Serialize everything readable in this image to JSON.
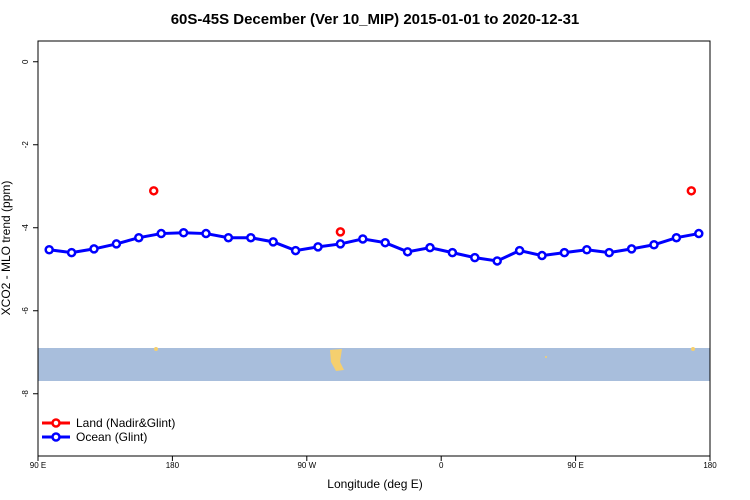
{
  "chart_data": {
    "type": "line",
    "title": "60S-45S December (Ver 10_MIP)   2015-01-01 to 2020-12-31",
    "x_label": "Longitude (deg E)",
    "y_label": "XCO2 - MLO trend (ppm)",
    "xlim": [
      90,
      540
    ],
    "ylim": [
      -9.5,
      0.5
    ],
    "xticks": [
      {
        "value": 90,
        "label": "90 E"
      },
      {
        "value": 180,
        "label": "180"
      },
      {
        "value": 270,
        "label": "90 W"
      },
      {
        "value": 360,
        "label": "0"
      },
      {
        "value": 450,
        "label": "90 E"
      },
      {
        "value": 540,
        "label": "180"
      }
    ],
    "yticks": [
      0,
      -2,
      -4,
      -6,
      -8
    ],
    "legend": "bottom-left",
    "series": [
      {
        "name": "Land (Nadir&Glint)",
        "color": "#ff0000",
        "x": [
          167.5,
          292.5,
          527.5
        ],
        "values": [
          -3.11,
          -4.1,
          -3.11
        ]
      },
      {
        "name": "Ocean (Glint)",
        "color": "#0000ff",
        "x": [
          97.5,
          112.5,
          127.5,
          142.5,
          157.5,
          172.5,
          187.5,
          202.5,
          217.5,
          232.5,
          247.5,
          262.5,
          277.5,
          292.5,
          307.5,
          322.5,
          337.5,
          352.5,
          367.5,
          382.5,
          397.5,
          412.5,
          427.5,
          442.5,
          457.5,
          472.5,
          487.5,
          502.5,
          517.5,
          532.5
        ],
        "values": [
          -4.53,
          -4.6,
          -4.51,
          -4.39,
          -4.24,
          -4.14,
          -4.12,
          -4.14,
          -4.24,
          -4.24,
          -4.34,
          -4.55,
          -4.46,
          -4.39,
          -4.27,
          -4.36,
          -4.58,
          -4.48,
          -4.6,
          -4.72,
          -4.8,
          -4.55,
          -4.67,
          -4.6,
          -4.53,
          -4.6,
          -4.51,
          -4.41,
          -4.24,
          -4.14
        ]
      }
    ]
  }
}
